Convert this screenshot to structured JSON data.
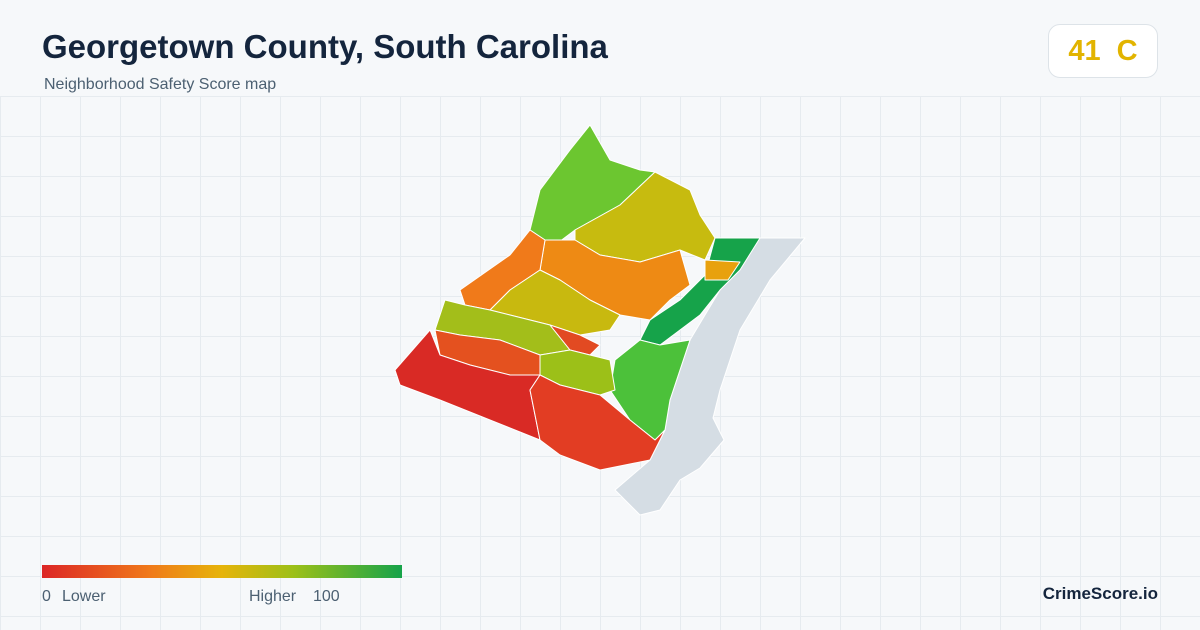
{
  "header": {
    "title": "Georgetown County, South Carolina",
    "subtitle": "Neighborhood Safety Score map"
  },
  "badge": {
    "score": 41,
    "grade": "C"
  },
  "legend": {
    "min": 0,
    "min_label": "Lower",
    "max_label": "Higher",
    "max": 100
  },
  "footer": {
    "brand": "CrimeScore.io"
  }
}
